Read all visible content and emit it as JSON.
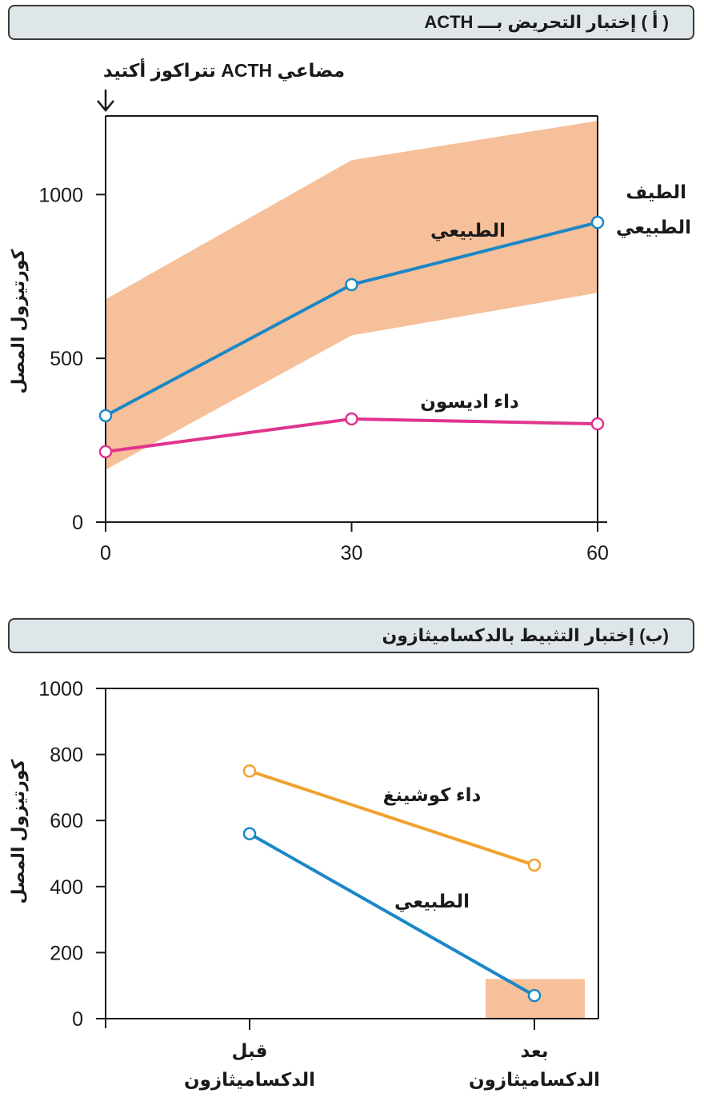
{
  "colors": {
    "normal": "#1b87c6",
    "addison": "#e0348d",
    "cushing": "#f0a22e",
    "range": "#f6c09a",
    "header_bg": "#dfe6ea"
  },
  "chart_data": [
    {
      "type": "line",
      "title": "( أ ) إختبار التحريض بـــ ACTH",
      "annotation": "مضاعي ACTH تتراكوز أكتيد",
      "ylabel": "كورتيزول المصل",
      "xlabel": "",
      "x": [
        0,
        30,
        60
      ],
      "x_tick_labels": [
        "0",
        "30",
        "60"
      ],
      "y_ticks": [
        0,
        500,
        1000
      ],
      "y_tick_labels": [
        "0",
        "500",
        "1000"
      ],
      "xlim": [
        0,
        60
      ],
      "ylim": [
        0,
        1240
      ],
      "grid": false,
      "series": [
        {
          "name": "الطبيعي",
          "values": [
            325,
            725,
            915
          ]
        },
        {
          "name": "داء اديسون",
          "values": [
            215,
            315,
            300
          ]
        }
      ],
      "range_band": {
        "name": "الطيف الطبيعي",
        "x": [
          0,
          30,
          60
        ],
        "lower": [
          160,
          570,
          700
        ],
        "upper": [
          680,
          1105,
          1225
        ]
      }
    },
    {
      "type": "line",
      "title": "(ب) إختبار التثبيط بالدكساميثازون",
      "ylabel": "كورتيزول المصل",
      "xlabel": "",
      "categories": [
        "قبل الدكساميثازون",
        "بعد الدكساميثازون"
      ],
      "category_lines": [
        [
          "قبل",
          "الدكساميثازون"
        ],
        [
          "بعد",
          "الدكساميثازون"
        ]
      ],
      "y_ticks": [
        0,
        200,
        400,
        600,
        800,
        1000
      ],
      "y_tick_labels": [
        "0",
        "200",
        "400",
        "600",
        "800",
        "1000"
      ],
      "ylim": [
        0,
        1000
      ],
      "grid": false,
      "series": [
        {
          "name": "داء كوشينغ",
          "values": [
            750,
            465
          ]
        },
        {
          "name": "الطبيعي",
          "values": [
            560,
            70
          ]
        }
      ],
      "range_band": {
        "category_index": 1,
        "lower": 0,
        "upper": 120
      }
    }
  ]
}
